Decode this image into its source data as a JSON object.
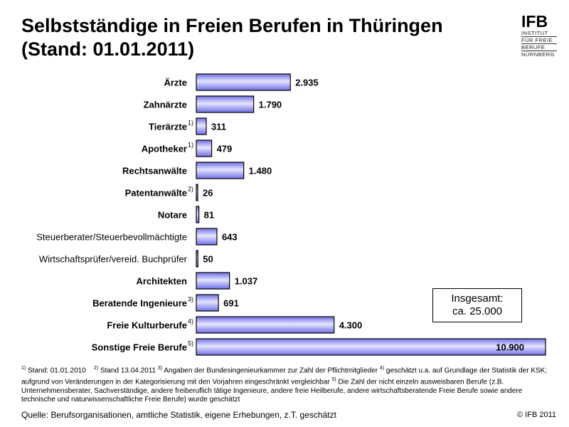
{
  "title": {
    "line1": "Selbstständige in Freien Berufen in Thüringen",
    "line2": "(Stand: 01.01.2011)"
  },
  "logo": {
    "main": "IFB",
    "sub": [
      "INSTITUT",
      "FÜR FREIE",
      "BERUFE",
      "NÜRNBERG"
    ]
  },
  "chart_data": {
    "type": "bar",
    "orientation": "horizontal",
    "categories": [
      {
        "label": "Ärzte",
        "footnote": "",
        "bold": true
      },
      {
        "label": "Zahnärzte",
        "footnote": "",
        "bold": true
      },
      {
        "label": "Tierärzte",
        "footnote": "1)",
        "bold": true
      },
      {
        "label": "Apotheker",
        "footnote": "1)",
        "bold": true
      },
      {
        "label": "Rechtsanwälte",
        "footnote": "",
        "bold": true
      },
      {
        "label": "Patentanwälte",
        "footnote": "2)",
        "bold": true
      },
      {
        "label": "Notare",
        "footnote": "",
        "bold": true
      },
      {
        "label": "Steuerberater/Steuerbevollmächtigte",
        "footnote": "",
        "bold": false
      },
      {
        "label": "Wirtschaftsprüfer/vereid. Buchprüfer",
        "footnote": "",
        "bold": false
      },
      {
        "label": "Architekten",
        "footnote": "",
        "bold": true
      },
      {
        "label": "Beratende Ingenieure",
        "footnote": "3)",
        "bold": true
      },
      {
        "label": "Freie Kulturberufe",
        "footnote": "4)",
        "bold": true
      },
      {
        "label": "Sonstige Freie Berufe",
        "footnote": "5)",
        "bold": true
      }
    ],
    "values": [
      2935,
      1790,
      311,
      479,
      1480,
      26,
      81,
      643,
      50,
      1037,
      691,
      4300,
      10900
    ],
    "value_labels": [
      "2.935",
      "1.790",
      "311",
      "479",
      "1.480",
      "26",
      "81",
      "643",
      "50",
      "1.037",
      "691",
      "4.300",
      "10.900"
    ],
    "xlim": [
      0,
      10900
    ],
    "bar_color": "#6f6fe6",
    "bar_highlight": "#e6e6ff",
    "grid": false
  },
  "total": {
    "line1": "Insgesamt:",
    "line2": "ca. 25.000"
  },
  "notes": {
    "fn1_mark": "1)",
    "fn1_text": " Stand: 01.01.2010",
    "fn2_mark": "2)",
    "fn2_text": " Stand 13.04.2011",
    "fn3_mark": "3)",
    "fn3_text": " Angaben der Bundesingenieurkammer zur Zahl der Pflichtmitglieder",
    "fn4_mark": "4)",
    "fn4_text": " geschätzt u.a. auf Grundlage der Statistik der KSK; aufgrund von Veränderungen in der Kategorisierung mit den Vorjahren eingeschränkt vergleichbar",
    "fn5_mark": "5)",
    "fn5_text": " Die Zahl der nicht einzeln ausweisbaren Berufe (z.B. Unternehmensberater, Sachverständige, andere freiberuflich tätige Ingenieure, andere freie Heilberufe, andere wirtschaftsberatende Freie Berufe sowie andere technische und naturwissenschaftliche Freie Berufe) wurde geschätzt"
  },
  "source": "Quelle: Berufsorganisationen, amtliche Statistik, eigene Erhebungen, z.T. geschätzt",
  "copyright": "© IFB 2011"
}
